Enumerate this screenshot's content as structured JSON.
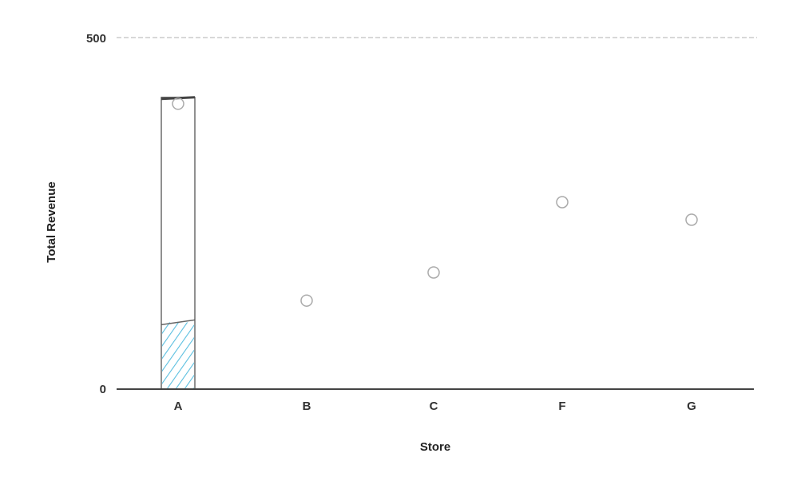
{
  "chart_data": {
    "type": "bar",
    "categories": [
      "A",
      "B",
      "C",
      "F",
      "G"
    ],
    "values": [
      415,
      135,
      175,
      275,
      250
    ],
    "highlight": {
      "category": "A",
      "filled_value": 95,
      "fill_color": "#5bbfe0"
    },
    "xlabel": "Store",
    "ylabel": "Total Revenue",
    "ylim": [
      0,
      500
    ],
    "y_ticks": [
      0,
      500
    ],
    "colors": {
      "bar_outline": "#555555",
      "marker": "#aaaaaa",
      "axis": "#444444"
    }
  }
}
